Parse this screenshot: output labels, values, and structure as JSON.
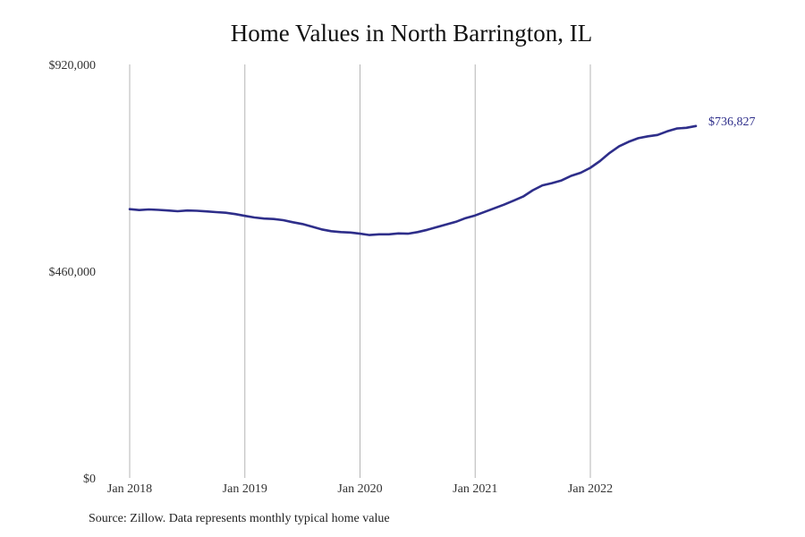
{
  "chart_data": {
    "type": "line",
    "title": "Home Values in North Barrington, IL",
    "xlabel": "",
    "ylabel": "",
    "ylim": [
      0,
      920000
    ],
    "y_ticks": [
      "$0",
      "$460,000",
      "$920,000"
    ],
    "y_tick_values": [
      0,
      460000,
      920000
    ],
    "x_ticks": [
      "Jan 2018",
      "Jan 2019",
      "Jan 2020",
      "Jan 2021",
      "Jan 2022"
    ],
    "x_tick_values": [
      "2018-01",
      "2019-01",
      "2020-01",
      "2021-01",
      "2022-01"
    ],
    "grid": "vertical lines at each year",
    "line_color": "#2e2e8a",
    "end_label": "$736,827",
    "series": [
      {
        "x": [
          "2018-01",
          "2018-02",
          "2018-03",
          "2018-04",
          "2018-05",
          "2018-06",
          "2018-07",
          "2018-08",
          "2018-09",
          "2018-10",
          "2018-11",
          "2018-12",
          "2019-01",
          "2019-02",
          "2019-03",
          "2019-04",
          "2019-05",
          "2019-06",
          "2019-07",
          "2019-08",
          "2019-09",
          "2019-10",
          "2019-11",
          "2019-12",
          "2020-01",
          "2020-02",
          "2020-03",
          "2020-04",
          "2020-05",
          "2020-06",
          "2020-07",
          "2020-08",
          "2020-09",
          "2020-10",
          "2020-11",
          "2020-12",
          "2021-01",
          "2021-02",
          "2021-03",
          "2021-04",
          "2021-05",
          "2021-06",
          "2021-07",
          "2021-08",
          "2021-09",
          "2021-10",
          "2021-11",
          "2021-12",
          "2022-01",
          "2022-02",
          "2022-03",
          "2022-04",
          "2022-05",
          "2022-06",
          "2022-07",
          "2022-08",
          "2022-09",
          "2022-10",
          "2022-11",
          "2022-12"
        ],
        "values": [
          598000,
          596000,
          597500,
          596500,
          595000,
          593500,
          595000,
          594500,
          593000,
          591500,
          590000,
          587000,
          583000,
          579500,
          577000,
          576000,
          573500,
          569000,
          565000,
          559000,
          553000,
          549000,
          547000,
          546000,
          543500,
          540500,
          542000,
          542000,
          544000,
          543500,
          547000,
          552000,
          558000,
          564000,
          570000,
          578000,
          584000,
          592000,
          600000,
          608000,
          617000,
          626000,
          640000,
          651000,
          656000,
          662000,
          672000,
          679000,
          690000,
          705000,
          723000,
          738000,
          748000,
          756000,
          760000,
          763000,
          771000,
          777500,
          779000,
          736827
        ]
      }
    ]
  },
  "source_note": "Source: Zillow. Data represents monthly typical home value"
}
